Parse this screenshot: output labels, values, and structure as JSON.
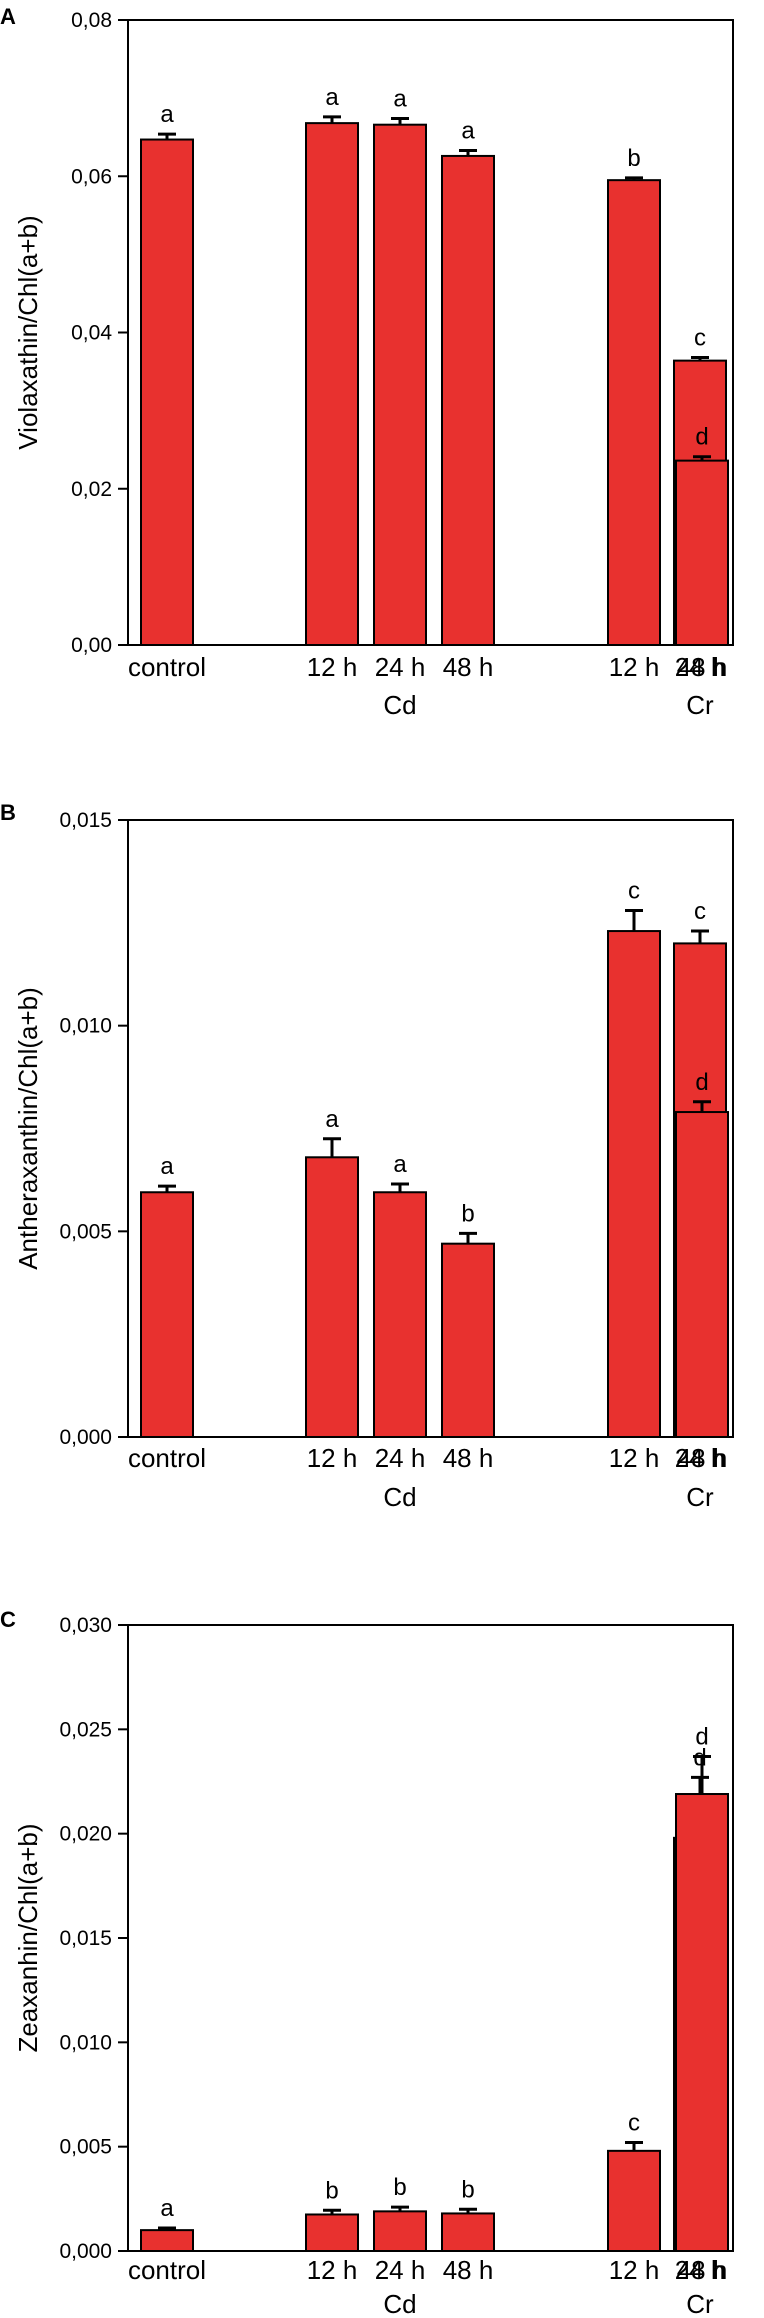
{
  "figure": {
    "bar_color": "#e8312f",
    "bar_stroke": "#000000"
  },
  "chart_data": [
    {
      "panel": "A",
      "type": "bar",
      "ylabel": "Violaxathin/Chl(a+b)",
      "ylim": [
        0,
        0.08
      ],
      "yticks": [
        "0,00",
        "0,02",
        "0,04",
        "0,06",
        "0,08"
      ],
      "yticks_values": [
        0,
        0.02,
        0.04,
        0.06,
        0.08
      ],
      "categories": [
        "control",
        "12 h",
        "24 h",
        "48 h",
        "12 h",
        "24 h",
        "48 h"
      ],
      "groups": [
        {
          "label": "Cd"
        },
        {
          "label": "Cr"
        }
      ],
      "values": [
        0.0647,
        0.0668,
        0.0666,
        0.0626,
        0.0595,
        0.0364,
        0.0236
      ],
      "errors": [
        0.0007,
        0.0008,
        0.0008,
        0.0007,
        0.0003,
        0.0004,
        0.0005
      ],
      "significance": [
        "a",
        "a",
        "a",
        "a",
        "b",
        "c",
        "d"
      ]
    },
    {
      "panel": "B",
      "type": "bar",
      "ylabel": "Antheraxanthin/Chl(a+b)",
      "ylim": [
        0,
        0.015
      ],
      "yticks": [
        "0,000",
        "0,005",
        "0,010",
        "0,015"
      ],
      "yticks_values": [
        0,
        0.005,
        0.01,
        0.015
      ],
      "categories": [
        "control",
        "12 h",
        "24 h",
        "48 h",
        "12 h",
        "24 h",
        "48 h"
      ],
      "groups": [
        {
          "label": "Cd"
        },
        {
          "label": "Cr"
        }
      ],
      "values": [
        0.00595,
        0.0068,
        0.00595,
        0.0047,
        0.0123,
        0.012,
        0.0079
      ],
      "errors": [
        0.00015,
        0.00045,
        0.0002,
        0.00025,
        0.0005,
        0.0003,
        0.00025
      ],
      "significance": [
        "a",
        "a",
        "a",
        "b",
        "c",
        "c",
        "d"
      ]
    },
    {
      "panel": "C",
      "type": "bar",
      "ylabel": "Zeaxanhin/Chl(a+b)",
      "ylim": [
        0,
        0.03
      ],
      "yticks": [
        "0,000",
        "0,005",
        "0,010",
        "0,015",
        "0,020",
        "0,025",
        "0,030"
      ],
      "yticks_values": [
        0,
        0.005,
        0.01,
        0.015,
        0.02,
        0.025,
        0.03
      ],
      "categories": [
        "control",
        "12 h",
        "24 h",
        "48 h",
        "12 h",
        "24 h",
        "48 h"
      ],
      "groups": [
        {
          "label": "Cd"
        },
        {
          "label": "Cr"
        }
      ],
      "values": [
        0.001,
        0.00175,
        0.0019,
        0.0018,
        0.0048,
        0.0198,
        0.0219
      ],
      "errors": [
        0.0001,
        0.0002,
        0.0002,
        0.0002,
        0.0004,
        0.0029,
        0.0018
      ],
      "significance": [
        "a",
        "b",
        "b",
        "b",
        "c",
        "d",
        "d"
      ]
    }
  ]
}
